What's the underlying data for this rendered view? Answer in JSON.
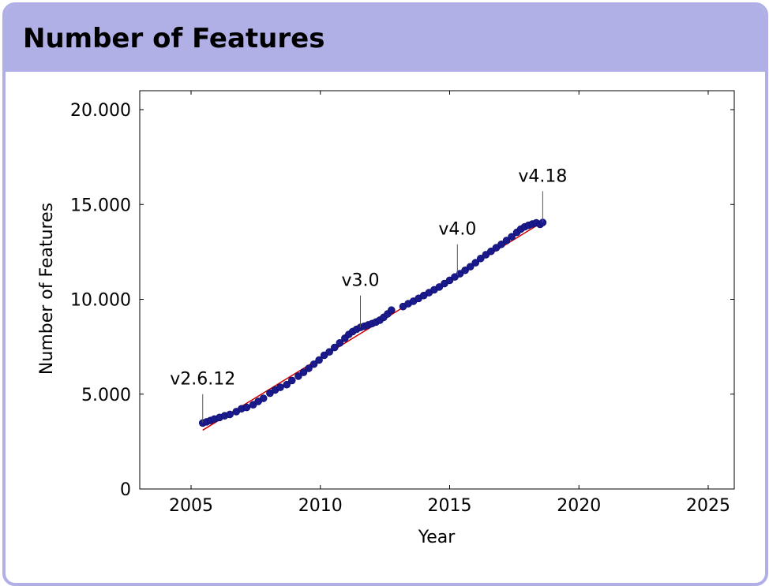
{
  "panel": {
    "title": "Number of Features",
    "border_color": "#b0b0e6"
  },
  "chart_data": {
    "type": "scatter",
    "xlabel": "Year",
    "ylabel": "Number of Features",
    "xlim": [
      2003,
      2026
    ],
    "ylim": [
      0,
      21000
    ],
    "xticks": [
      2005,
      2010,
      2015,
      2020,
      2025
    ],
    "xtick_labels": [
      "2005",
      "2010",
      "2015",
      "2020",
      "2025"
    ],
    "yticks": [
      0,
      5000,
      10000,
      15000,
      20000
    ],
    "ytick_labels": [
      "0",
      "5.000",
      "10.000",
      "15.000",
      "20.000"
    ],
    "grid": false,
    "marker_color": "#1a1a8c",
    "trend_color": "#cc0000",
    "x": [
      2005.45,
      2005.6,
      2005.75,
      2005.9,
      2006.1,
      2006.3,
      2006.5,
      2006.75,
      2006.95,
      2007.15,
      2007.4,
      2007.6,
      2007.8,
      2008.05,
      2008.25,
      2008.45,
      2008.7,
      2008.9,
      2009.15,
      2009.35,
      2009.55,
      2009.75,
      2009.95,
      2010.15,
      2010.35,
      2010.55,
      2010.75,
      2010.95,
      2011.1,
      2011.25,
      2011.4,
      2011.55,
      2011.7,
      2011.85,
      2012.0,
      2012.15,
      2012.3,
      2012.45,
      2012.6,
      2012.75,
      2013.2,
      2013.4,
      2013.6,
      2013.8,
      2014.0,
      2014.2,
      2014.4,
      2014.6,
      2014.8,
      2015.0,
      2015.2,
      2015.4,
      2015.6,
      2015.8,
      2016.0,
      2016.2,
      2016.4,
      2016.6,
      2016.8,
      2017.0,
      2017.2,
      2017.4,
      2017.6,
      2017.75,
      2017.9,
      2018.05,
      2018.2,
      2018.35,
      2018.5,
      2018.6
    ],
    "y": [
      3480,
      3540,
      3610,
      3690,
      3770,
      3860,
      3930,
      4080,
      4230,
      4300,
      4440,
      4620,
      4780,
      5050,
      5220,
      5360,
      5500,
      5720,
      5950,
      6150,
      6360,
      6580,
      6800,
      7050,
      7230,
      7460,
      7700,
      7950,
      8150,
      8300,
      8420,
      8520,
      8580,
      8650,
      8720,
      8800,
      8900,
      9050,
      9230,
      9430,
      9620,
      9770,
      9900,
      10050,
      10200,
      10350,
      10500,
      10650,
      10830,
      11000,
      11180,
      11350,
      11530,
      11720,
      11930,
      12150,
      12350,
      12530,
      12720,
      12900,
      13100,
      13300,
      13530,
      13700,
      13820,
      13900,
      13970,
      14030,
      13950,
      14050
    ],
    "trend": {
      "x": [
        2005.45,
        2018.6
      ],
      "y": [
        3100,
        14080
      ]
    },
    "annotations": [
      {
        "label": "v2.6.12",
        "x": 2005.45,
        "y": 3480,
        "text_y": 5500
      },
      {
        "label": "v3.0",
        "x": 2011.55,
        "y": 8520,
        "text_y": 10700
      },
      {
        "label": "v4.0",
        "x": 2015.3,
        "y": 11260,
        "text_y": 13400
      },
      {
        "label": "v4.18",
        "x": 2018.6,
        "y": 14050,
        "text_y": 16200
      }
    ]
  }
}
